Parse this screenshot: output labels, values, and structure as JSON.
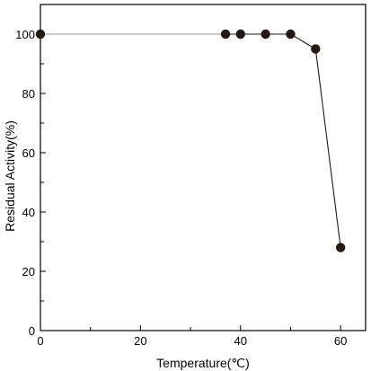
{
  "chart_data": {
    "type": "line",
    "xlabel": "Temperature(℃)",
    "ylabel": "Residual Activity(%)",
    "xlim": [
      0,
      65
    ],
    "ylim": [
      0,
      110
    ],
    "x_ticks": [
      0,
      20,
      40,
      60
    ],
    "x_minor_ticks": [
      10,
      30,
      50
    ],
    "y_ticks": [
      0,
      20,
      40,
      60,
      80,
      100
    ],
    "y_minor_ticks": [
      10,
      30,
      50,
      70,
      90
    ],
    "grid": false,
    "series": [
      {
        "x": [
          0,
          37,
          40,
          45,
          50,
          55,
          60
        ],
        "y": [
          100,
          100,
          100,
          100,
          100,
          95,
          28
        ]
      }
    ],
    "colors": {
      "marker": "#231815",
      "line_start": "#9a9a9a",
      "line": "#231815"
    }
  }
}
